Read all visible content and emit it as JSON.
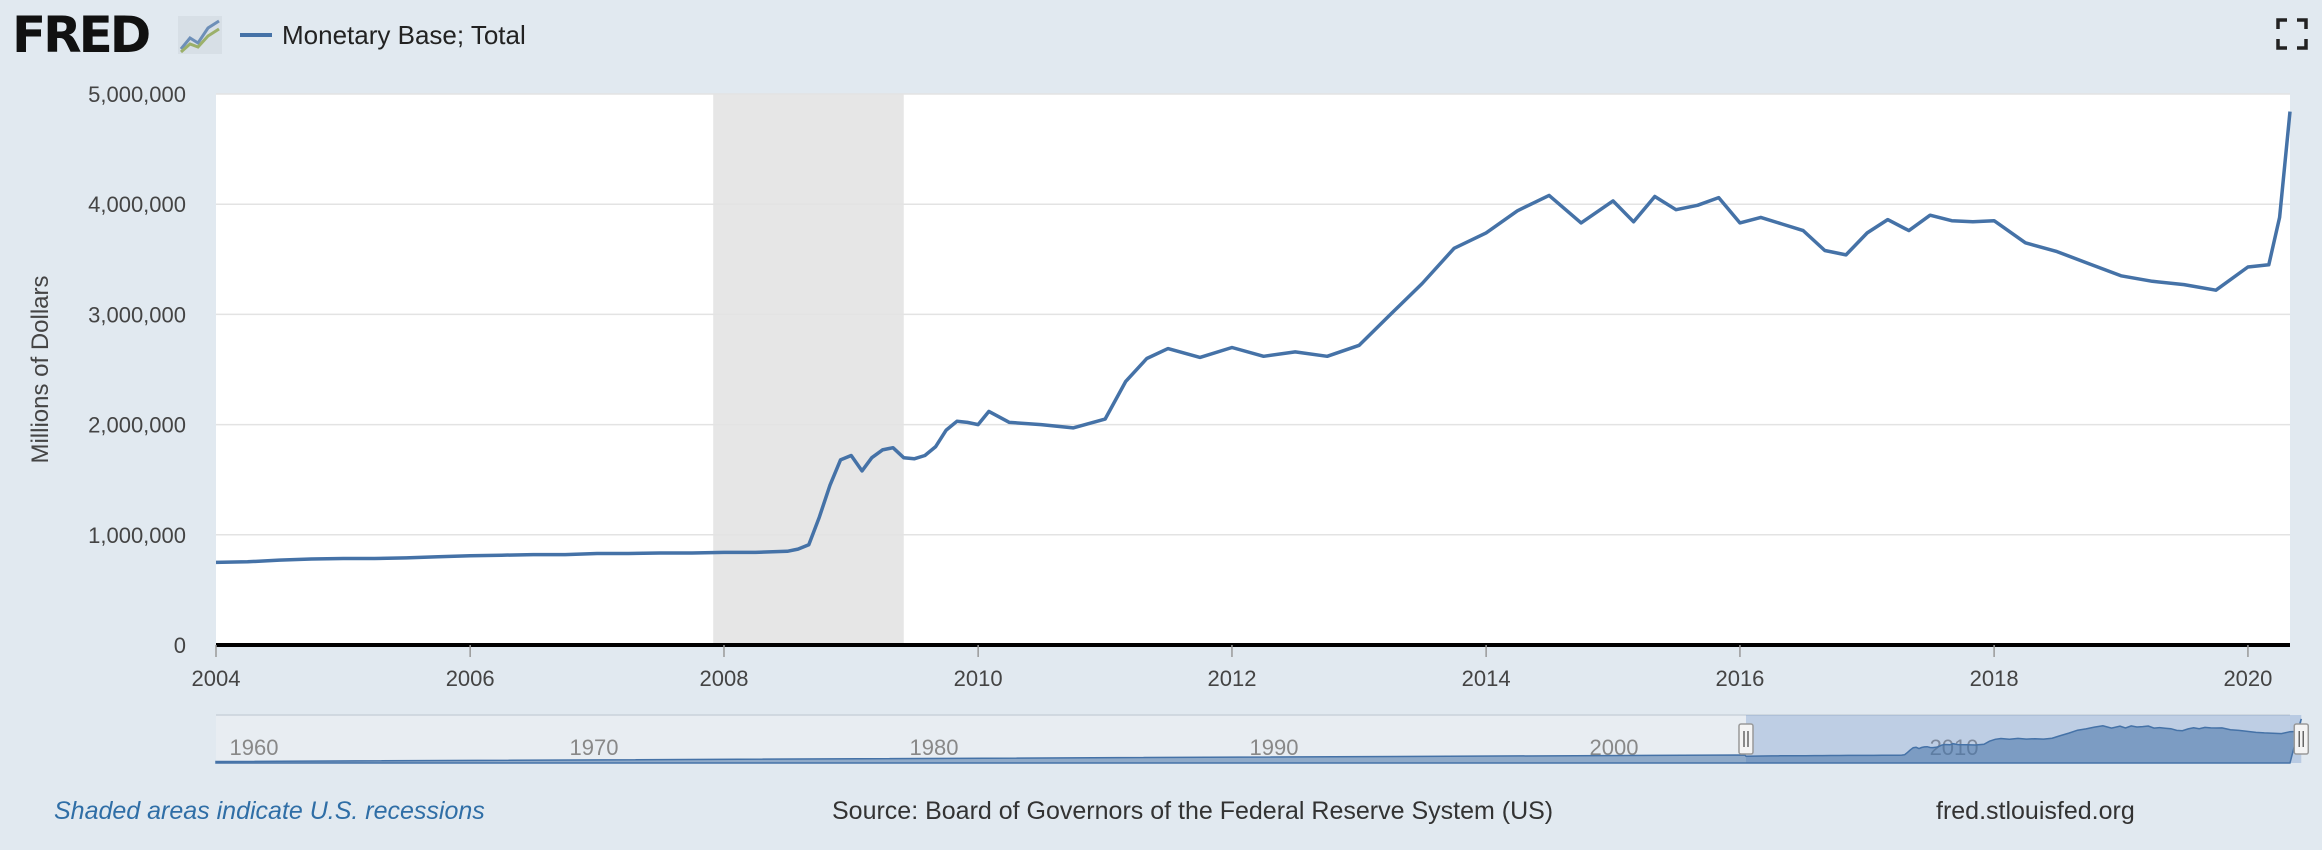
{
  "header": {
    "logo_text": "FRED",
    "legend_label": "Monetary Base; Total"
  },
  "footer": {
    "recession_note": "Shaded areas indicate U.S. recessions",
    "source": "Source: Board of Governors of the Federal Reserve System (US)",
    "url": "fred.stlouisfed.org"
  },
  "colors": {
    "line": "#4572a7",
    "recession": "#e6e6e6",
    "plot_background": "#ffffff",
    "page_background": "#e1e9f0"
  },
  "chart_data": {
    "type": "line",
    "series": [
      {
        "name": "Monetary Base; Total",
        "x": [
          "2004-01-01",
          "2004-04-01",
          "2004-07-01",
          "2004-10-01",
          "2005-01-01",
          "2005-04-01",
          "2005-07-01",
          "2005-10-01",
          "2006-01-01",
          "2006-04-01",
          "2006-07-01",
          "2006-10-01",
          "2007-01-01",
          "2007-04-01",
          "2007-07-01",
          "2007-10-01",
          "2008-01-01",
          "2008-04-01",
          "2008-07-01",
          "2008-08-01",
          "2008-09-01",
          "2008-10-01",
          "2008-11-01",
          "2008-12-01",
          "2009-01-01",
          "2009-02-01",
          "2009-03-01",
          "2009-04-01",
          "2009-05-01",
          "2009-06-01",
          "2009-07-01",
          "2009-08-01",
          "2009-09-01",
          "2009-10-01",
          "2009-11-01",
          "2009-12-01",
          "2010-01-01",
          "2010-02-01",
          "2010-04-01",
          "2010-07-01",
          "2010-10-01",
          "2011-01-01",
          "2011-03-01",
          "2011-05-01",
          "2011-07-01",
          "2011-10-01",
          "2012-01-01",
          "2012-04-01",
          "2012-07-01",
          "2012-10-01",
          "2013-01-01",
          "2013-04-01",
          "2013-07-01",
          "2013-10-01",
          "2014-01-01",
          "2014-04-01",
          "2014-07-01",
          "2014-10-01",
          "2015-01-01",
          "2015-03-01",
          "2015-05-01",
          "2015-07-01",
          "2015-09-01",
          "2015-11-01",
          "2016-01-01",
          "2016-03-01",
          "2016-05-01",
          "2016-07-01",
          "2016-09-01",
          "2016-11-01",
          "2017-01-01",
          "2017-03-01",
          "2017-05-01",
          "2017-07-01",
          "2017-09-01",
          "2017-11-01",
          "2018-01-01",
          "2018-04-01",
          "2018-07-01",
          "2018-10-01",
          "2019-01-01",
          "2019-04-01",
          "2019-07-01",
          "2019-10-01",
          "2020-01-01",
          "2020-03-01",
          "2020-04-01",
          "2020-05-01"
        ],
        "values": [
          750000,
          755000,
          770000,
          780000,
          785000,
          785000,
          790000,
          800000,
          810000,
          815000,
          820000,
          820000,
          830000,
          830000,
          835000,
          835000,
          840000,
          840000,
          850000,
          870000,
          910000,
          1160000,
          1450000,
          1680000,
          1720000,
          1580000,
          1700000,
          1770000,
          1790000,
          1700000,
          1690000,
          1720000,
          1800000,
          1950000,
          2030000,
          2020000,
          2000000,
          2120000,
          2020000,
          2000000,
          1970000,
          2050000,
          2390000,
          2600000,
          2690000,
          2610000,
          2700000,
          2620000,
          2660000,
          2620000,
          2720000,
          3000000,
          3280000,
          3600000,
          3740000,
          3940000,
          4080000,
          3830000,
          4030000,
          3840000,
          4070000,
          3950000,
          3990000,
          4060000,
          3830000,
          3880000,
          3820000,
          3760000,
          3580000,
          3540000,
          3740000,
          3860000,
          3760000,
          3900000,
          3850000,
          3840000,
          3850000,
          3650000,
          3570000,
          3460000,
          3350000,
          3300000,
          3270000,
          3220000,
          3430000,
          3450000,
          3880000,
          4840000
        ]
      }
    ],
    "recessions": [
      [
        "2007-12-01",
        "2009-06-01"
      ]
    ],
    "xlim": [
      "2004-01-01",
      "2020-05-01"
    ],
    "ylim": [
      0,
      5000000
    ],
    "x_ticks": [
      "2004",
      "2006",
      "2008",
      "2010",
      "2012",
      "2014",
      "2016",
      "2018",
      "2020"
    ],
    "y_ticks": [
      "0",
      "1,000,000",
      "2,000,000",
      "3,000,000",
      "4,000,000",
      "5,000,000"
    ],
    "ylabel": "Millions of Dollars",
    "grid": true,
    "legend_position": "top-left",
    "navigator": {
      "labels": [
        "1960",
        "1970",
        "1980",
        "1990",
        "2000",
        "2010"
      ],
      "range": [
        "1959",
        "2020"
      ],
      "selected_range": [
        "2004-01-01",
        "2020-05-01"
      ]
    }
  }
}
